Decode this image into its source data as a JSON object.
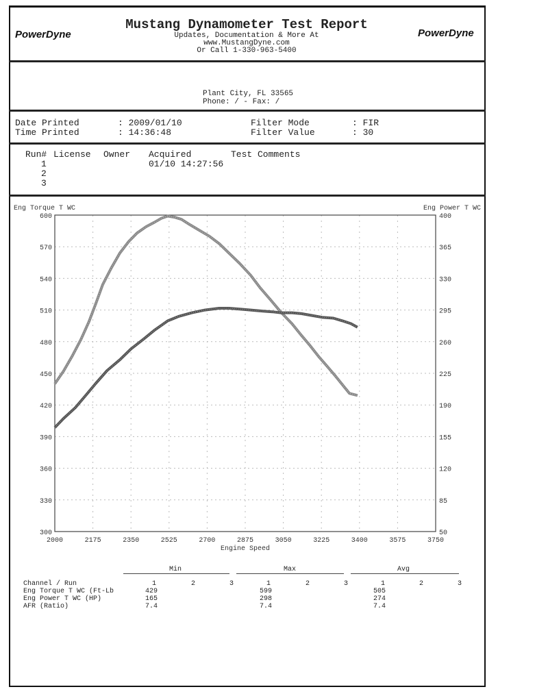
{
  "header": {
    "title": "Mustang Dynamometer Test Report",
    "line1": "Updates, Documentation & More At",
    "line2": "www.MustangDyne.com",
    "line3": "Or Call 1-330-963-5400",
    "logo_text": "PowerDyne"
  },
  "address": {
    "city": "Plant City, FL  33565",
    "phone": "Phone:  /  - Fax:  /"
  },
  "info": {
    "date_label": "Date Printed",
    "date_value": ": 2009/01/10",
    "time_label": "Time Printed",
    "time_value": ": 14:36:48",
    "filter_mode_label": "Filter Mode",
    "filter_mode_value": ": FIR",
    "filter_value_label": "Filter Value",
    "filter_value_value": ": 30"
  },
  "runs": {
    "headers": [
      "Run#",
      "License",
      "Owner",
      "Acquired",
      "Test Comments"
    ],
    "rows": [
      {
        "run": "1",
        "acquired": "01/10 14:27:56"
      },
      {
        "run": "2",
        "acquired": ""
      },
      {
        "run": "3",
        "acquired": ""
      }
    ]
  },
  "chart_data": {
    "type": "line",
    "xlabel": "Engine Speed",
    "ylabel": "Eng Torque T WC",
    "y2label": "Eng Power T WC",
    "xlim": [
      2000,
      3750
    ],
    "ylim": [
      300,
      600
    ],
    "y2lim": [
      50,
      400
    ],
    "xticks": [
      2000,
      2175,
      2350,
      2525,
      2700,
      2875,
      3050,
      3225,
      3400,
      3575,
      3750
    ],
    "yticks": [
      300,
      330,
      360,
      390,
      420,
      450,
      480,
      510,
      540,
      570,
      600
    ],
    "y2ticks": [
      50,
      85,
      120,
      155,
      190,
      225,
      260,
      295,
      330,
      365,
      400
    ],
    "grid": true,
    "series": [
      {
        "name": "Eng Torque T WC",
        "axis": "left",
        "color": "#8a8a8a",
        "x": [
          2000,
          2040,
          2079,
          2120,
          2157,
          2190,
          2220,
          2260,
          2299,
          2340,
          2378,
          2420,
          2456,
          2490,
          2519,
          2550,
          2582,
          2620,
          2661,
          2710,
          2755,
          2800,
          2850,
          2900,
          2944,
          2990,
          3039,
          3090,
          3133,
          3170,
          3212,
          3250,
          3291,
          3330,
          3354,
          3391
        ],
        "y": [
          440,
          452,
          466,
          482,
          499,
          517,
          534,
          550,
          564,
          575,
          583,
          589,
          593,
          597,
          599,
          598,
          596,
          591,
          586,
          580,
          573,
          564,
          554,
          543,
          531,
          520,
          508,
          497,
          486,
          477,
          466,
          457,
          447,
          437,
          431,
          429
        ]
      },
      {
        "name": "Eng Power T WC",
        "axis": "right",
        "color": "#555555",
        "x": [
          2000,
          2040,
          2094,
          2140,
          2189,
          2240,
          2299,
          2350,
          2409,
          2460,
          2519,
          2570,
          2630,
          2690,
          2755,
          2800,
          2850,
          2900,
          2944,
          3000,
          3039,
          3090,
          3133,
          3180,
          3228,
          3280,
          3322,
          3360,
          3391
        ],
        "y": [
          165,
          175,
          187,
          200,
          214,
          228,
          240,
          252,
          263,
          273,
          283,
          288,
          292,
          295,
          297,
          297,
          296,
          295,
          294,
          293,
          292,
          292,
          291,
          289,
          287,
          286,
          283,
          280,
          276
        ]
      }
    ]
  },
  "stats": {
    "group_headers": [
      "Min",
      "Max",
      "Avg"
    ],
    "channel_header": "Channel / Run",
    "run_cols": [
      "1",
      "2",
      "3"
    ],
    "rows": [
      {
        "label": "Eng Torque T WC (Ft-Lb",
        "min": "429",
        "max": "599",
        "avg": "505"
      },
      {
        "label": "Eng Power T WC (HP)",
        "min": "165",
        "max": "298",
        "avg": "274"
      },
      {
        "label": "AFR (Ratio)",
        "min": "7.4",
        "max": "7.4",
        "avg": "7.4"
      }
    ]
  }
}
